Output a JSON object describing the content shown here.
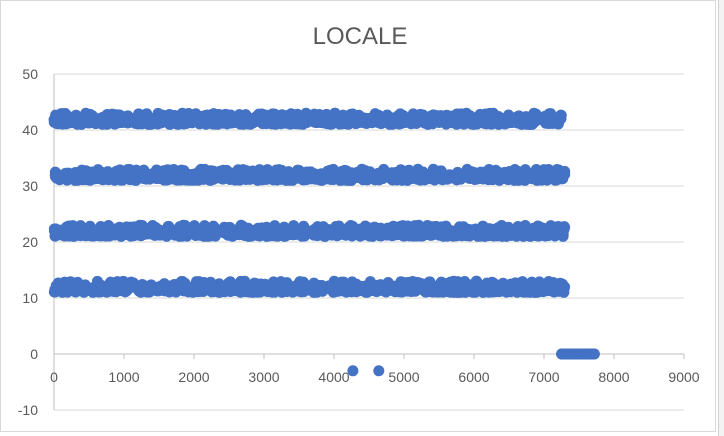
{
  "chart_data": {
    "type": "scatter",
    "title": "LOCALE",
    "xlim": [
      0,
      9000
    ],
    "ylim": [
      -10,
      50
    ],
    "x_ticks": [
      0,
      1000,
      2000,
      3000,
      4000,
      5000,
      6000,
      7000,
      8000,
      9000
    ],
    "y_ticks": [
      -10,
      0,
      10,
      20,
      30,
      40,
      50
    ],
    "grid": "horizontal",
    "legend": "none",
    "marker_color": "#4472c4",
    "bands": [
      {
        "x_range": [
          0,
          7300
        ],
        "y_range": [
          11,
          13
        ]
      },
      {
        "x_range": [
          0,
          7300
        ],
        "y_range": [
          21,
          23
        ]
      },
      {
        "x_range": [
          0,
          7300
        ],
        "y_range": [
          31,
          33
        ]
      },
      {
        "x_range": [
          0,
          7250
        ],
        "y_range": [
          41,
          43
        ]
      }
    ],
    "cluster": {
      "x_range": [
        7250,
        7720
      ],
      "y": 0
    },
    "points": [
      {
        "x": 4270,
        "y": -3
      },
      {
        "x": 4640,
        "y": -3
      }
    ]
  },
  "colors": {
    "marker": "#4472c4",
    "grid": "#d9d9d9",
    "axis": "#bfbfbf",
    "text": "#595959"
  }
}
